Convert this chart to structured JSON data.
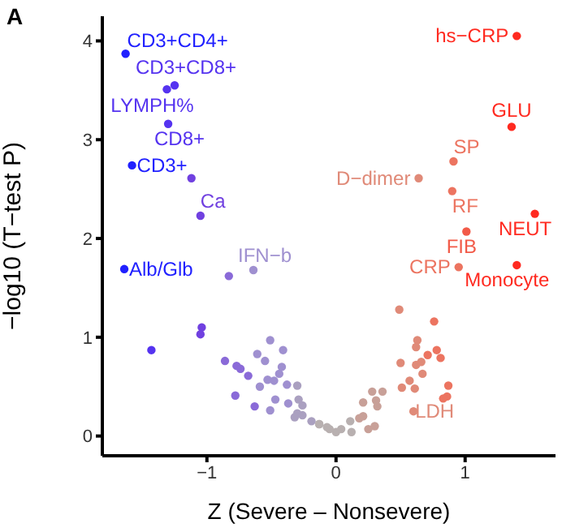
{
  "chart_data": {
    "type": "scatter",
    "xlabel": "Z (Severe – Nonsevere)",
    "ylabel": "−log10 (T−test P)",
    "xlim": [
      -1.81,
      1.7
    ],
    "ylim": [
      -0.2,
      4.25
    ],
    "xticks": [
      {
        "value": -1,
        "label": "−1"
      },
      0,
      1
    ],
    "yticks": [
      0,
      1,
      2,
      3,
      4
    ],
    "marker": "circle",
    "x": [
      -1.63,
      -1.25,
      -1.31,
      -1.3,
      -1.58,
      -1.12,
      -1.05,
      -1.64,
      -0.64,
      -0.83,
      -1.04,
      -1.05,
      -1.43,
      -0.51,
      -0.41,
      -0.61,
      -0.55,
      -0.86,
      -0.77,
      -0.74,
      -0.42,
      -0.68,
      -0.44,
      -0.53,
      -0.48,
      -0.59,
      -0.3,
      -0.38,
      -0.78,
      -0.47,
      -0.29,
      -0.63,
      -0.37,
      -0.26,
      -0.51,
      -0.3,
      -0.32,
      -0.26,
      -0.19,
      -0.13,
      -0.07,
      0.0,
      1.4,
      1.36,
      0.91,
      0.64,
      0.9,
      1.54,
      1.01,
      0.95,
      1.4,
      0.49,
      0.76,
      0.63,
      0.62,
      0.78,
      0.71,
      0.81,
      0.5,
      0.62,
      0.66,
      0.67,
      0.57,
      0.51,
      0.61,
      0.87,
      0.86,
      0.83,
      0.6,
      0.28,
      0.36,
      0.31,
      0.32,
      0.21,
      0.21,
      0.18,
      0.3,
      0.11,
      0.12,
      0.25,
      0.04,
      -0.05,
      -0.13
    ],
    "values": [
      3.87,
      3.55,
      3.51,
      3.16,
      2.74,
      2.61,
      2.23,
      1.69,
      1.68,
      1.62,
      1.1,
      1.03,
      0.87,
      0.97,
      0.87,
      0.83,
      0.76,
      0.76,
      0.71,
      0.68,
      0.7,
      0.61,
      0.63,
      0.57,
      0.56,
      0.5,
      0.51,
      0.52,
      0.41,
      0.37,
      0.37,
      0.3,
      0.33,
      0.31,
      0.26,
      0.23,
      0.19,
      0.21,
      0.15,
      0.12,
      0.09,
      0.04,
      4.05,
      3.13,
      2.78,
      2.61,
      2.48,
      2.25,
      2.07,
      1.71,
      1.73,
      1.28,
      1.16,
      0.97,
      0.9,
      0.87,
      0.82,
      0.79,
      0.74,
      0.72,
      0.75,
      0.63,
      0.56,
      0.49,
      0.48,
      0.51,
      0.4,
      0.38,
      0.25,
      0.45,
      0.45,
      0.36,
      0.3,
      0.34,
      0.2,
      0.18,
      0.1,
      0.15,
      0.04,
      0.07,
      0.07,
      0.07,
      0.12
    ],
    "colors": [
      "#2020ff",
      "#5533f0",
      "#5533f0",
      "#5533f0",
      "#2020ff",
      "#7040e0",
      "#7040e0",
      "#2020ff",
      "#9f90d0",
      "#8a6ad8",
      "#7040e0",
      "#7040e0",
      "#5533f0",
      "#9f90d0",
      "#9f90d0",
      "#9f90d0",
      "#9f90d0",
      "#8a6ad8",
      "#8a6ad8",
      "#8a6ad8",
      "#9f90d0",
      "#8a6ad8",
      "#9f90d0",
      "#9f90d0",
      "#9f90d0",
      "#9f90d0",
      "#aaa0c0",
      "#9f90d0",
      "#8a6ad8",
      "#9f90d0",
      "#aaa0c0",
      "#8a6ad8",
      "#9f90d0",
      "#aaa0c0",
      "#9f90d0",
      "#aaa0c0",
      "#aaa0c0",
      "#aaa0c0",
      "#aaa0c0",
      "#b8b0b0",
      "#b8b0b0",
      "#b8b0b0",
      "#ff2a20",
      "#ff2a20",
      "#ec7460",
      "#e08a78",
      "#ec7460",
      "#ff2a20",
      "#f25a48",
      "#ec7460",
      "#ff2a20",
      "#e08a78",
      "#ec7460",
      "#e08a78",
      "#e08a78",
      "#ec7460",
      "#ec7460",
      "#ec7460",
      "#e08a78",
      "#e08a78",
      "#e08a78",
      "#e08a78",
      "#e08a78",
      "#e08a78",
      "#e08a78",
      "#ec7460",
      "#ec7460",
      "#ec7460",
      "#e08a78",
      "#c8a098",
      "#c8a098",
      "#c8a098",
      "#c8a098",
      "#c8a098",
      "#c8a098",
      "#c8a098",
      "#c8a098",
      "#b8b0b0",
      "#b8b0b0",
      "#c8a098",
      "#b8b0b0",
      "#b8b0b0",
      "#b8b0b0"
    ],
    "annotations": [
      "A",
      {
        "text": "CD3+CD4+",
        "x": -1.63,
        "y": 3.87
      },
      {
        "text": "CD3+CD8+",
        "x": -1.25,
        "y": 3.55
      },
      {
        "text": "LYMPH%",
        "x": -1.31,
        "y": 3.51
      },
      {
        "text": "CD8+",
        "x": -1.3,
        "y": 3.16
      },
      {
        "text": "CD3+",
        "x": -1.58,
        "y": 2.74
      },
      {
        "text": "Ca",
        "x": -1.05,
        "y": 2.23
      },
      {
        "text": "Alb/Glb",
        "x": -1.64,
        "y": 1.69
      },
      {
        "text": "IFN−b",
        "x": -0.64,
        "y": 1.68
      },
      {
        "text": "hs−CRP",
        "x": 1.4,
        "y": 4.05
      },
      {
        "text": "GLU",
        "x": 1.36,
        "y": 3.13
      },
      {
        "text": "SP",
        "x": 0.91,
        "y": 2.78
      },
      {
        "text": "D−dimer",
        "x": 0.64,
        "y": 2.61
      },
      {
        "text": "RF",
        "x": 0.9,
        "y": 2.48
      },
      {
        "text": "NEUT",
        "x": 1.54,
        "y": 2.25
      },
      {
        "text": "FIB",
        "x": 1.01,
        "y": 2.07
      },
      {
        "text": "CRP",
        "x": 0.95,
        "y": 1.71
      },
      {
        "text": "Monocyte",
        "x": 1.4,
        "y": 1.73
      },
      {
        "text": "LDH",
        "x": 0.6,
        "y": 0.25
      }
    ]
  }
}
